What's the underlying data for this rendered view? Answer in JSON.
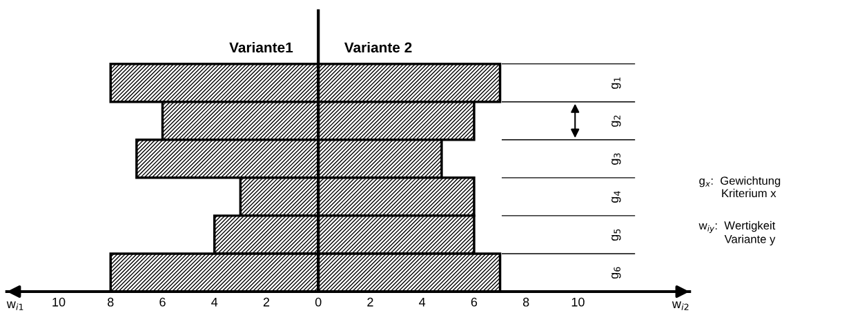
{
  "chart_data": {
    "type": "bar",
    "orientation": "horizontal",
    "stacked": true,
    "categories": [
      "g$_{1}$",
      "g$_{2}$",
      "g$_{3}$",
      "g$_{4}$",
      "g$_{5}$",
      "g$_{6}$"
    ],
    "series": [
      {
        "name": "Variante1",
        "color": "#000000",
        "values": [
          -8,
          -6,
          -7,
          -3,
          -4,
          -8
        ]
      },
      {
        "name": "Variante 2",
        "color": "#000000",
        "values": [
          7,
          6,
          4.75,
          6,
          6,
          7
        ]
      }
    ],
    "xlim": [
      -12,
      14.3
    ],
    "xticks": [
      {
        "value": -10,
        "label": "10"
      },
      {
        "value": -8,
        "label": "8"
      },
      {
        "value": -6,
        "label": "6"
      },
      {
        "value": -4,
        "label": "4"
      },
      {
        "value": -2,
        "label": "2"
      },
      0,
      2,
      4,
      6,
      8,
      10
    ],
    "ref_lines": [
      {
        "axis": "x",
        "value": 0,
        "label": null
      }
    ],
    "annotations": [
      "w$_{i1}$",
      "w$_{i2}$",
      "g$_{x}$:  Gewichtung\n       Kriterium x",
      "w$_{iy}$:  Wertigkeit\n        Variante y"
    ],
    "legend": false
  }
}
